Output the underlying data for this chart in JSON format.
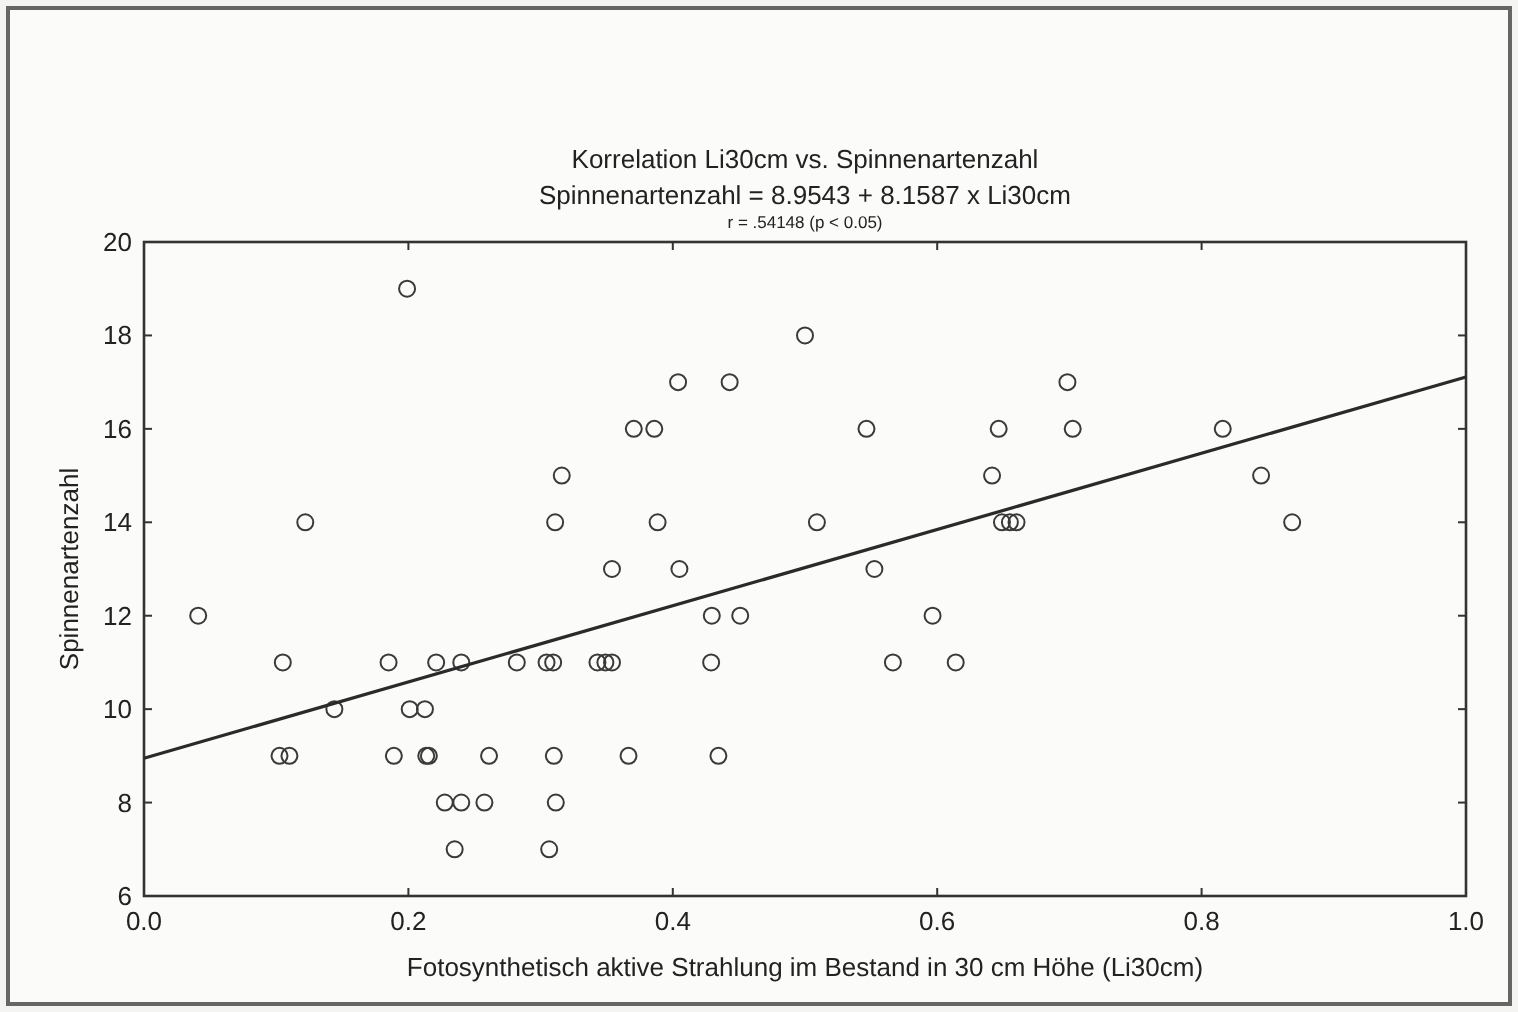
{
  "chart_data": {
    "type": "scatter",
    "title": "Korrelation Li30cm vs. Spinnenartenzahl",
    "subtitle": "Spinnenartenzahl = 8.9543 + 8.1587 x Li30cm",
    "annotations": [
      "r = .54148 (p < 0.05)"
    ],
    "xlabel": "Fotosynthetisch aktive Strahlung im Bestand in 30 cm Höhe (Li30cm)",
    "ylabel": "Spinnenartenzahl",
    "xlim": [
      0,
      1
    ],
    "ylim": [
      6,
      20
    ],
    "xticks": [
      {
        "value": 0,
        "label": "0.0"
      },
      {
        "value": 0.2,
        "label": "0.2"
      },
      {
        "value": 0.4,
        "label": "0.4"
      },
      {
        "value": 0.6,
        "label": "0.6"
      },
      {
        "value": 0.8,
        "label": "0.8"
      },
      {
        "value": 1,
        "label": "1.0"
      }
    ],
    "yticks": [
      6,
      8,
      10,
      12,
      14,
      16,
      18,
      20
    ],
    "grid": false,
    "series": [
      {
        "color": "#3a3a3a",
        "marker": "circle",
        "x": [
          0.041,
          0.105,
          0.1025,
          0.11,
          0.122,
          0.144,
          0.185,
          0.189,
          0.199,
          0.201,
          0.2125,
          0.2135,
          0.2155,
          0.221,
          0.2275,
          0.24,
          0.235,
          0.24,
          0.2575,
          0.261,
          0.282,
          0.3045,
          0.3095,
          0.3065,
          0.31,
          0.3115,
          0.311,
          0.316,
          0.343,
          0.349,
          0.354,
          0.354,
          0.3665,
          0.3705,
          0.386,
          0.3885,
          0.404,
          0.405,
          0.4295,
          0.451,
          0.429,
          0.4345,
          0.443,
          0.5,
          0.509,
          0.5465,
          0.5525,
          0.5665,
          0.5965,
          0.614,
          0.6415,
          0.6465,
          0.649,
          0.655,
          0.66,
          0.6985,
          0.7025,
          0.816,
          0.845,
          0.8685
        ],
        "values": [
          12,
          11,
          9,
          9,
          14,
          10,
          11,
          9,
          19,
          10,
          10,
          9,
          9,
          11,
          8,
          8,
          7,
          11,
          8,
          9,
          11,
          11,
          11,
          7,
          9,
          8,
          14,
          15,
          11,
          11,
          11,
          13,
          9,
          16,
          16,
          14,
          17,
          13,
          12,
          12,
          11,
          9,
          17,
          18,
          14,
          16,
          13,
          11,
          12,
          11,
          15,
          16,
          14,
          14,
          14,
          17,
          16,
          16,
          15,
          14
        ]
      },
      {
        "type": "line",
        "color": "#2a2a2a",
        "marker": "none",
        "x": [
          0,
          1
        ],
        "values": [
          8.95,
          17.11
        ]
      }
    ]
  }
}
